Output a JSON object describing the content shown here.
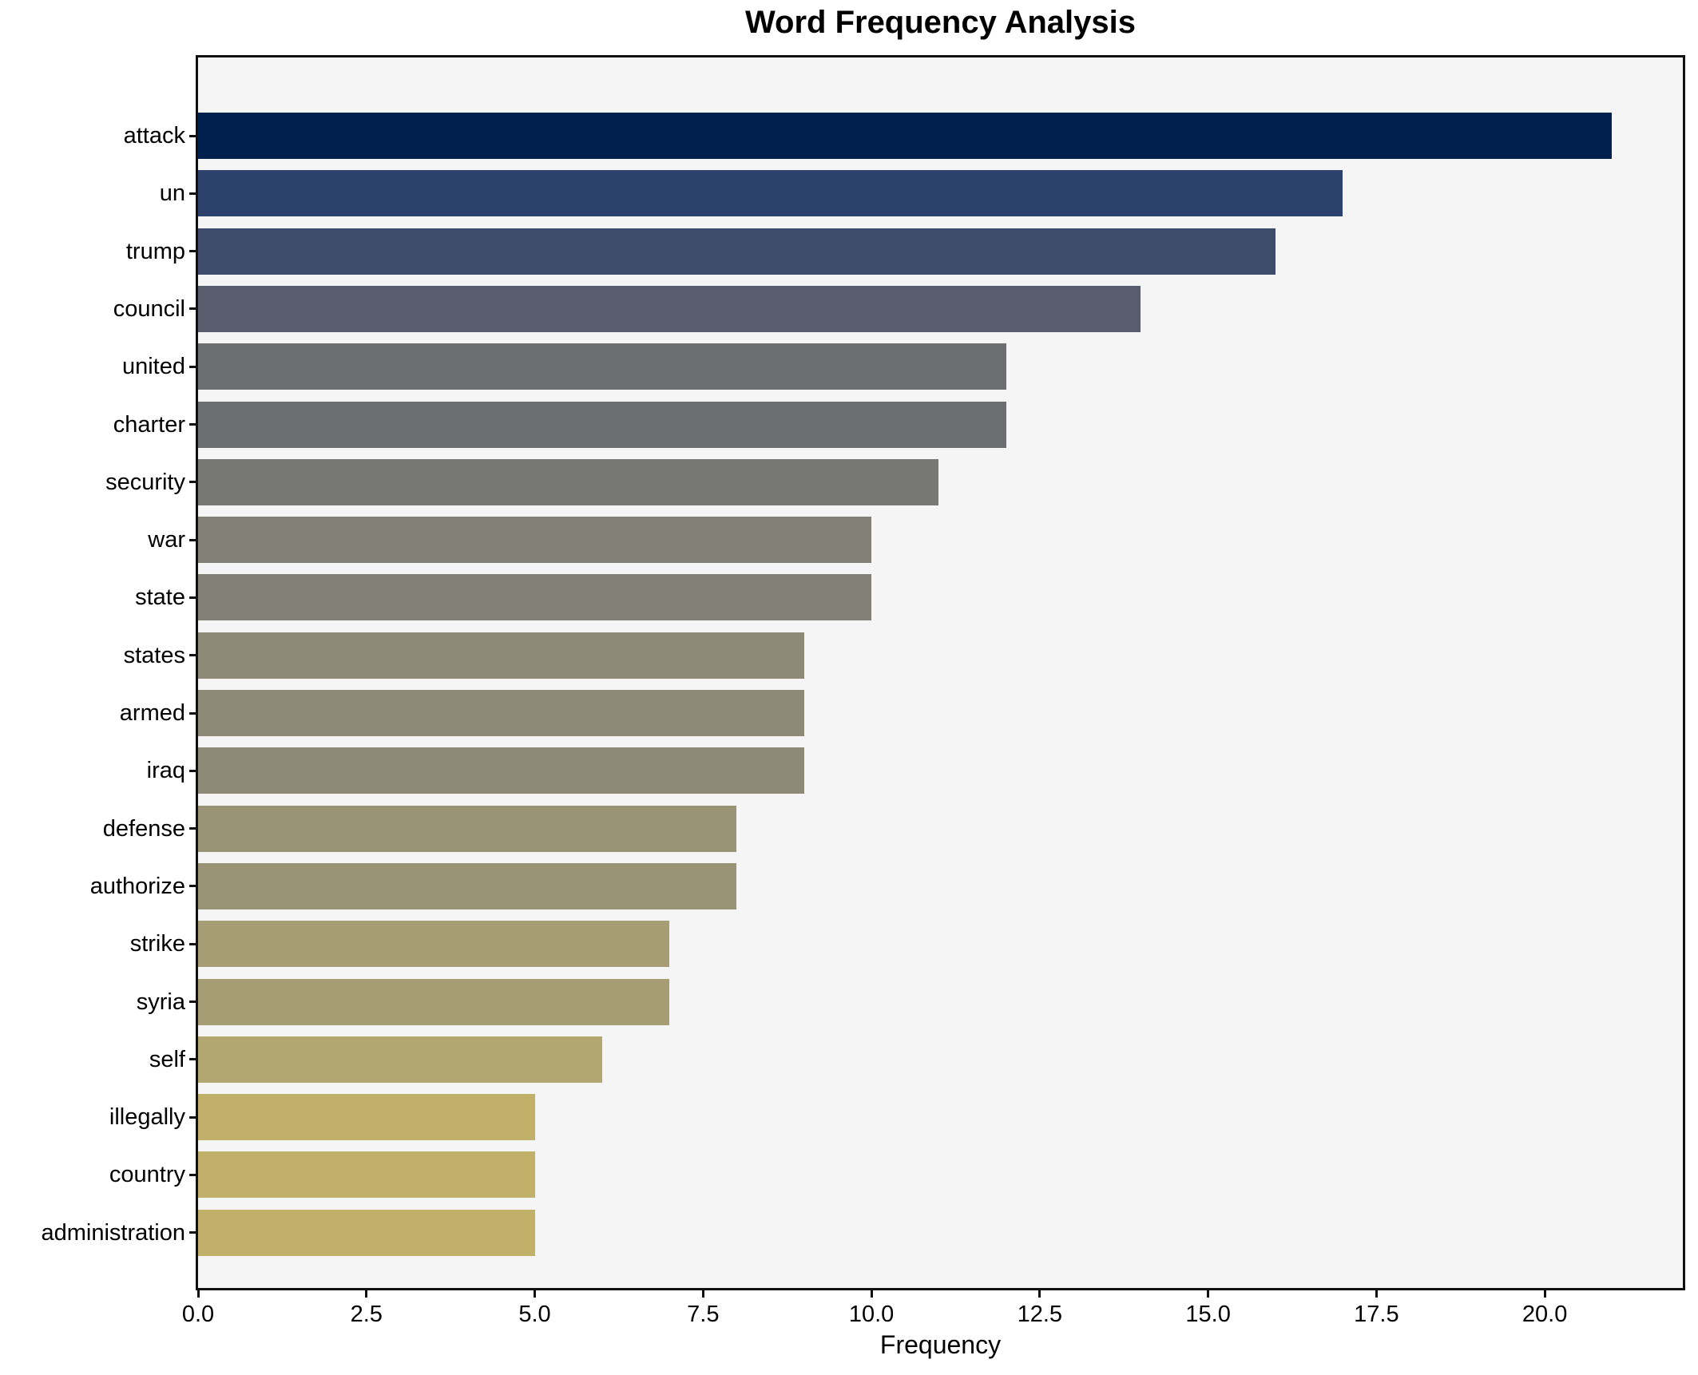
{
  "chart_data": {
    "type": "bar",
    "orientation": "horizontal",
    "title": "Word Frequency Analysis",
    "xlabel": "Frequency",
    "ylabel": "",
    "colormap": "cividis",
    "figure_background": "#ffffff",
    "plot_background": "#f5f5f6",
    "spine_color": "#111111",
    "grid": false,
    "legend": "none",
    "categories": [
      "attack",
      "un",
      "trump",
      "council",
      "united",
      "charter",
      "security",
      "war",
      "state",
      "states",
      "armed",
      "iraq",
      "defense",
      "authorize",
      "strike",
      "syria",
      "self",
      "illegally",
      "country",
      "administration"
    ],
    "values": [
      21,
      17,
      16,
      14,
      12,
      12,
      11,
      10,
      10,
      9,
      9,
      9,
      8,
      8,
      7,
      7,
      6,
      5,
      5,
      5
    ],
    "bar_colors": [
      "#00204d",
      "#2c426c",
      "#3e4b6b",
      "#575d6d",
      "#6c6e72",
      "#6c6e72",
      "#777775",
      "#838177",
      "#838177",
      "#8e8a78",
      "#8e8a78",
      "#8e8a78",
      "#9a9477",
      "#9a9477",
      "#a69d75",
      "#a69d75",
      "#b3a771",
      "#c0b06a",
      "#c0b06a",
      "#c0b06a"
    ],
    "xlim": [
      0,
      22.05
    ],
    "xticks": [
      0,
      2.5,
      5,
      7.5,
      10,
      12.5,
      15,
      17.5,
      20
    ],
    "xtick_labels": [
      "0.0",
      "2.5",
      "5.0",
      "7.5",
      "10.0",
      "12.5",
      "15.0",
      "17.5",
      "20.0"
    ]
  }
}
